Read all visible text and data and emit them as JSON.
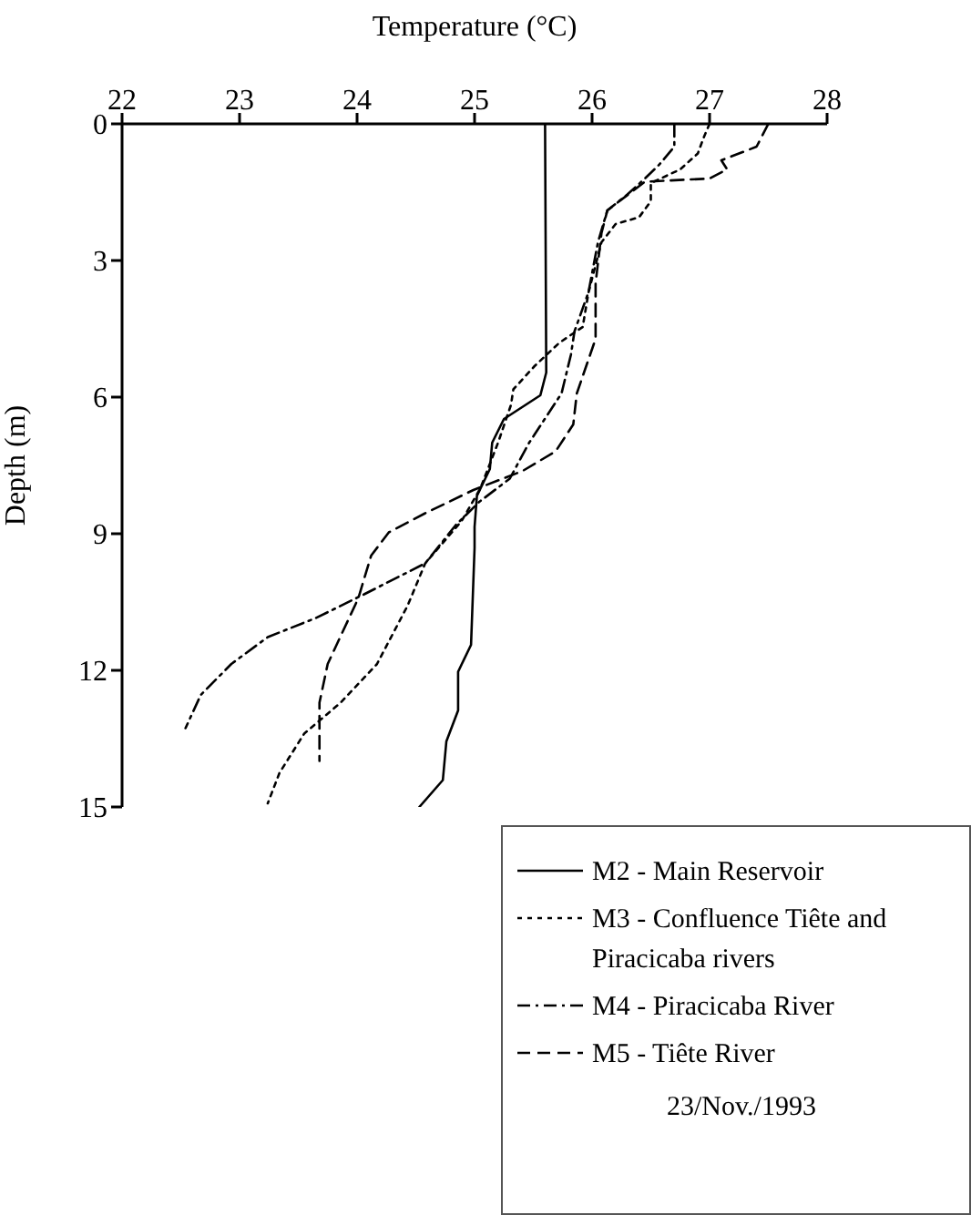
{
  "chart_data": {
    "type": "line",
    "xlabel": "Temperature (°C)",
    "ylabel": "Depth (m)",
    "xlim": [
      22,
      28
    ],
    "xticks": [
      22,
      23,
      24,
      25,
      26,
      27,
      28
    ],
    "ylim": [
      15,
      0
    ],
    "yticks": [
      0,
      3,
      6,
      9,
      12,
      15
    ],
    "grid": false,
    "legend": "bottom right",
    "marker": "none",
    "annotations": [
      "23/Nov./1993"
    ],
    "series": [
      {
        "name": "M2 - Main Reservoir",
        "color": "#000000",
        "line_style": "solid",
        "x": [
          25.6,
          25.61,
          25.56,
          25.25,
          25.15,
          25.13,
          25.02,
          25.0,
          25.0,
          24.97,
          24.86,
          24.86,
          24.76,
          24.73,
          24.53
        ],
        "values": [
          0,
          5.46,
          5.96,
          6.48,
          7.0,
          7.58,
          8.17,
          8.85,
          9.31,
          11.44,
          12.03,
          12.88,
          13.56,
          14.41,
          15.0
        ]
      },
      {
        "name": "M3 - Confluence Tiête and Piracicaba rivers",
        "color": "#000000",
        "line_style": "dotted",
        "x": [
          27.0,
          26.95,
          26.9,
          26.75,
          26.5,
          26.5,
          26.4,
          26.2,
          26.08,
          25.97,
          25.92,
          25.72,
          25.51,
          25.33,
          25.31,
          25.2,
          25.05,
          24.89,
          24.58,
          24.43,
          24.17,
          23.86,
          23.55,
          23.34,
          23.24
        ],
        "values": [
          0,
          0.3,
          0.65,
          1.0,
          1.3,
          1.7,
          2.05,
          2.2,
          2.6,
          3.7,
          4.46,
          4.81,
          5.32,
          5.83,
          6.17,
          7.0,
          8.0,
          8.72,
          9.65,
          10.58,
          11.86,
          12.71,
          13.39,
          14.25,
          14.92
        ]
      },
      {
        "name": "M4 - Piracicaba River",
        "color": "#000000",
        "line_style": "dashdot",
        "x": [
          26.7,
          26.7,
          26.57,
          26.45,
          26.3,
          26.13,
          26.05,
          25.97,
          25.85,
          25.82,
          25.74,
          25.46,
          25.3,
          25.04,
          24.84,
          24.58,
          24.06,
          23.65,
          23.24,
          22.93,
          22.67,
          22.54
        ],
        "values": [
          0,
          0.5,
          0.9,
          1.2,
          1.55,
          1.9,
          2.6,
          3.69,
          4.56,
          5.07,
          5.92,
          7.02,
          7.79,
          8.3,
          8.81,
          9.65,
          10.33,
          10.85,
          11.27,
          11.86,
          12.54,
          13.27
        ]
      },
      {
        "name": "M5 - Tiête River",
        "color": "#000000",
        "line_style": "dashed",
        "x": [
          27.5,
          27.4,
          27.1,
          27.15,
          27.0,
          26.45,
          26.13,
          26.08,
          26.03,
          26.03,
          25.87,
          25.84,
          25.69,
          25.41,
          24.99,
          24.58,
          24.27,
          24.12,
          24.01,
          23.75,
          23.68,
          23.68
        ],
        "values": [
          0,
          0.5,
          0.8,
          1.0,
          1.2,
          1.27,
          1.9,
          2.4,
          3.5,
          4.72,
          5.92,
          6.6,
          7.19,
          7.62,
          8.04,
          8.55,
          8.97,
          9.48,
          10.42,
          11.86,
          12.71,
          13.99
        ]
      }
    ]
  }
}
